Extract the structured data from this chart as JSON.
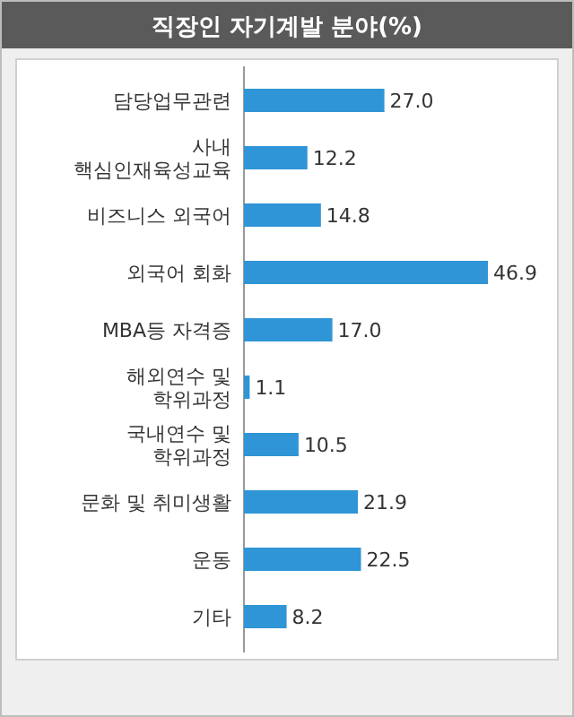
{
  "chart_data": {
    "type": "bar",
    "orientation": "horizontal",
    "title": "직장인 자기계발 분야(%)",
    "categories": [
      "담당업무관련",
      "사내\n핵심인재육성교육",
      "비즈니스 외국어",
      "외국어 회화",
      "MBA등 자격증",
      "해외연수 및\n학위과정",
      "국내연수 및\n학위과정",
      "문화 및 취미생활",
      "운동",
      "기타"
    ],
    "values": [
      27.0,
      12.2,
      14.8,
      46.9,
      17.0,
      1.1,
      10.5,
      21.9,
      22.5,
      8.2
    ],
    "value_labels": [
      "27.0",
      "12.2",
      "14.8",
      "46.9",
      "17.0",
      "1.1",
      "10.5",
      "21.9",
      "22.5",
      "8.2"
    ],
    "color": "#2f95d6"
  }
}
